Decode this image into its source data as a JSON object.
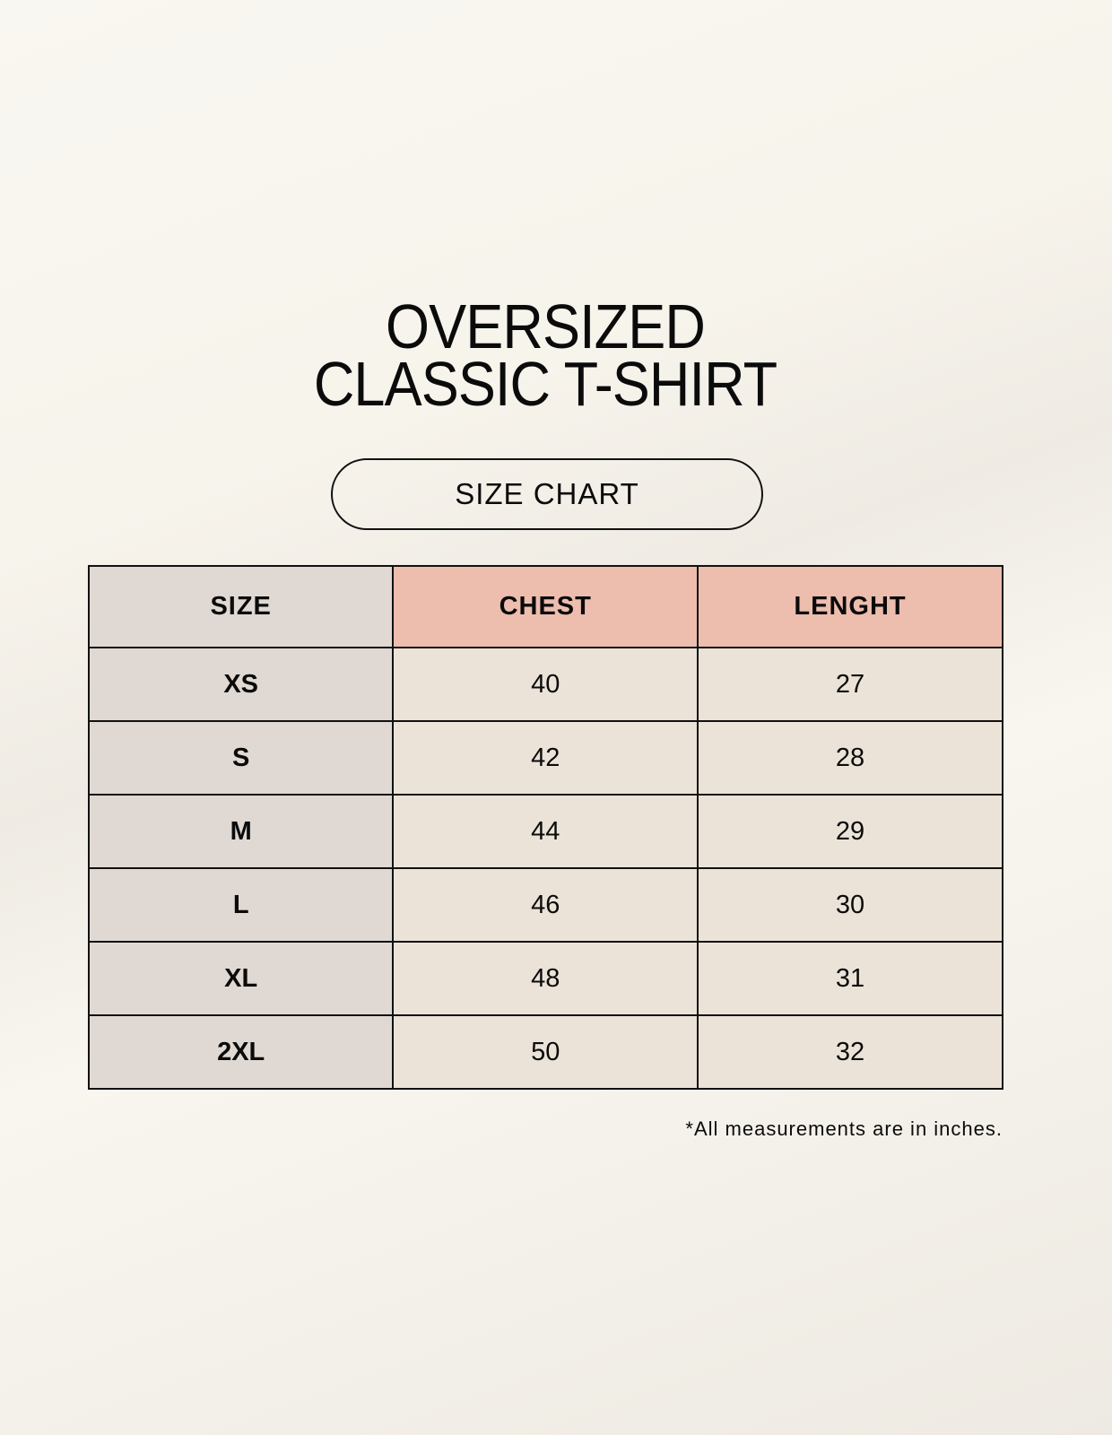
{
  "title": {
    "line1": "OVERSIZED",
    "line2": "CLASSIC T-SHIRT"
  },
  "badge": "SIZE CHART",
  "colors": {
    "size_column": "#e0d9d3",
    "header_accent": "#edbdae",
    "body_cell": "#ebe3d8",
    "border": "#111111"
  },
  "table": {
    "headers": [
      "SIZE",
      "CHEST",
      "LENGHT"
    ],
    "rows": [
      [
        "XS",
        "40",
        "27"
      ],
      [
        "S",
        "42",
        "28"
      ],
      [
        "M",
        "44",
        "29"
      ],
      [
        "L",
        "46",
        "30"
      ],
      [
        "XL",
        "48",
        "31"
      ],
      [
        "2XL",
        "50",
        "32"
      ]
    ]
  },
  "footnote": "*All measurements are in inches."
}
